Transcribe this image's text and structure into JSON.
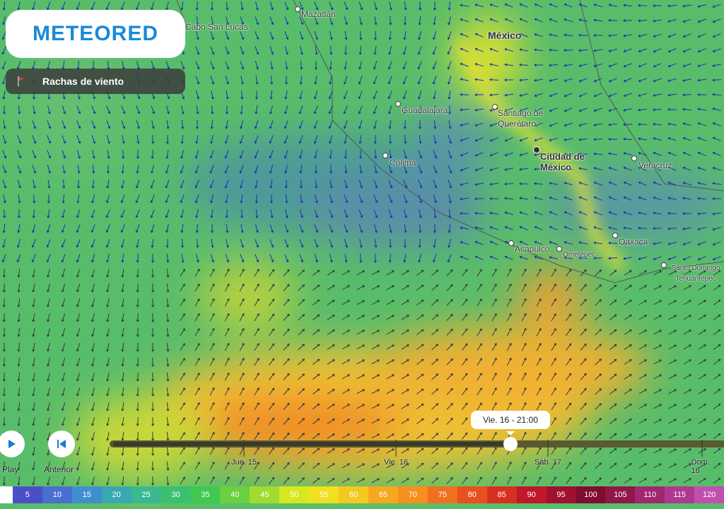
{
  "logo": "METEORED",
  "layer": "Rachas de viento",
  "places": [
    "Mazatlán",
    "Cabo San Lucas",
    "México",
    "Guadalajara",
    "Santiago de Querétaro",
    "Colima",
    "Ciudad de México",
    "Veracruz",
    "Acapulco",
    "Ometepec",
    "Oaxaca",
    "Santo Domingo Tehuantepec"
  ],
  "controls": {
    "play": "Play",
    "previous": "Anterior"
  },
  "timeline": {
    "current": "Vie. 16 - 21:00",
    "days": [
      "Jue. 15",
      "Vie. 16",
      "Sáb. 17",
      "Dom. 18"
    ]
  },
  "legend": {
    "values": [
      5,
      10,
      15,
      20,
      25,
      30,
      35,
      40,
      45,
      50,
      55,
      60,
      65,
      70,
      75,
      80,
      85,
      90,
      95,
      100,
      105,
      110,
      115,
      120
    ],
    "colors": [
      "#4a4fc8",
      "#4a6fd0",
      "#3f8fcc",
      "#3aa8b0",
      "#3ab890",
      "#3cc070",
      "#40c850",
      "#6ad040",
      "#a0dc30",
      "#d8e820",
      "#f0e020",
      "#f5c820",
      "#f5a820",
      "#f59020",
      "#f07020",
      "#e85020",
      "#d83020",
      "#c01828",
      "#a01030",
      "#800c30",
      "#901848",
      "#a02870",
      "#b03890",
      "#c050b0"
    ]
  }
}
